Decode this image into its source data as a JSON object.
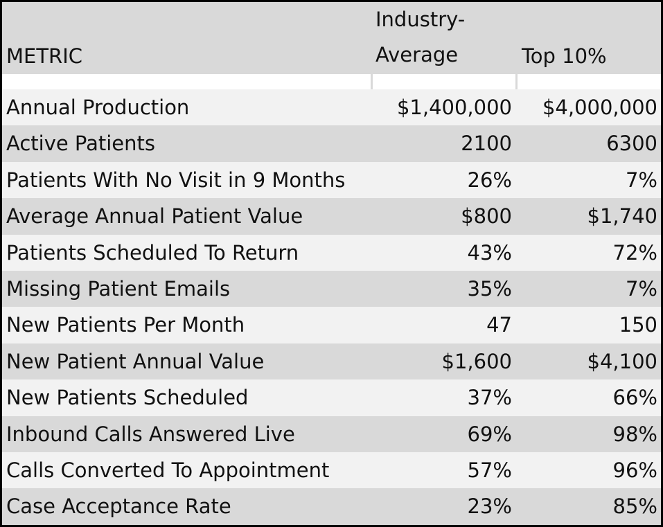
{
  "table": {
    "headers": {
      "metric": "METRIC",
      "industry": "Industry-\nAverage",
      "top10": "Top 10%"
    },
    "rows": [
      {
        "metric": "Annual Production",
        "industry": "$1,400,000",
        "top10": "$4,000,000"
      },
      {
        "metric": "Active Patients",
        "industry": "2100",
        "top10": "6300"
      },
      {
        "metric": "Patients With No Visit in 9 Months",
        "industry": "26%",
        "top10": "7%"
      },
      {
        "metric": "Average Annual Patient Value",
        "industry": "$800",
        "top10": "$1,740"
      },
      {
        "metric": "Patients Scheduled To Return",
        "industry": "43%",
        "top10": "72%"
      },
      {
        "metric": "Missing Patient Emails",
        "industry": "35%",
        "top10": "7%"
      },
      {
        "metric": "New Patients Per Month",
        "industry": "47",
        "top10": "150"
      },
      {
        "metric": "New Patient Annual Value",
        "industry": "$1,600",
        "top10": "$4,100"
      },
      {
        "metric": "New Patients Scheduled",
        "industry": "37%",
        "top10": "66%"
      },
      {
        "metric": "Inbound Calls Answered Live",
        "industry": "69%",
        "top10": "98%"
      },
      {
        "metric": "Calls Converted To Appointment",
        "industry": "57%",
        "top10": "96%"
      },
      {
        "metric": "Case Acceptance Rate",
        "industry": "23%",
        "top10": "85%"
      }
    ]
  },
  "colors": {
    "header_background": "#d9d9d9",
    "row_light": "#f2f2f2",
    "row_dark": "#d9d9d9",
    "border": "#000000",
    "text": "#111111"
  }
}
